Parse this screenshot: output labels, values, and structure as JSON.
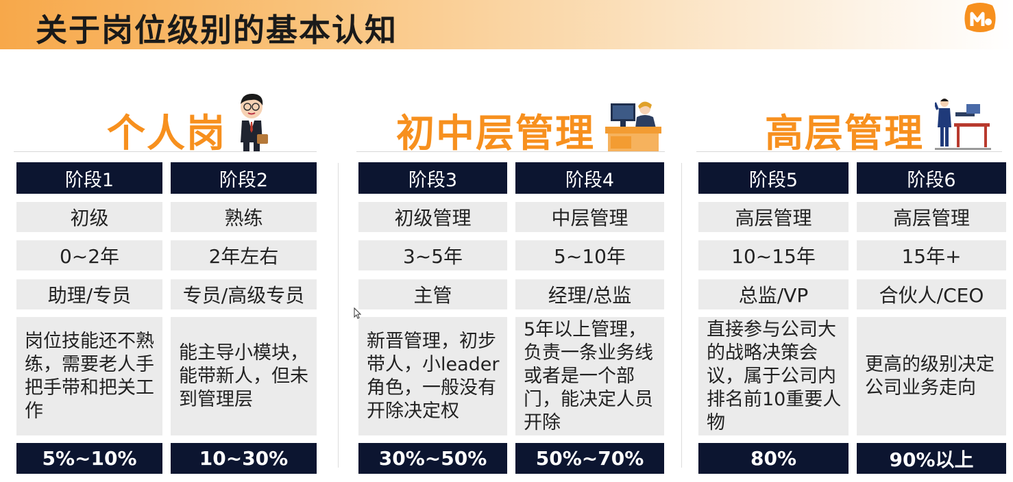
{
  "title": "关于岗位级别的基本认知",
  "groups": [
    {
      "title": "个人岗"
    },
    {
      "title": "初中层管理"
    },
    {
      "title": "高层管理"
    }
  ],
  "stages": [
    {
      "stage": "阶段1",
      "level": "初级",
      "years": "0~2年",
      "role": "助理/专员",
      "description": "岗位技能还不熟练，需要老人手把手带和把关工作",
      "percent": "5%~10%"
    },
    {
      "stage": "阶段2",
      "level": "熟练",
      "years": "2年左右",
      "role": "专员/高级专员",
      "description": "能主导小模块，能带新人，但未到管理层",
      "percent": "10~30%"
    },
    {
      "stage": "阶段3",
      "level": "初级管理",
      "years": "3~5年",
      "role": "主管",
      "description": "新晋管理，初步带人，小leader角色，一般没有开除决定权",
      "percent": "30%~50%"
    },
    {
      "stage": "阶段4",
      "level": "中层管理",
      "years": "5~10年",
      "role": "经理/总监",
      "description": "5年以上管理，负责一条业务线或者是一个部门，能决定人员开除",
      "percent": "50%~70%"
    },
    {
      "stage": "阶段5",
      "level": "高层管理",
      "years": "10~15年",
      "role": "总监/VP",
      "description": "直接参与公司大的战略决策会议，属于公司内排名前10重要人物",
      "percent": "80%"
    },
    {
      "stage": "阶段6",
      "level": "高层管理",
      "years": "15年+",
      "role": "合伙人/CEO",
      "description": "更高的级别决定公司业务走向",
      "percent": "90%以上"
    }
  ],
  "colors": {
    "accent": "#f7901e",
    "dark": "#0c1530",
    "cell": "#ebebeb"
  },
  "icons": [
    "logo-m-icon",
    "businessman-icon",
    "desk-worker-icon",
    "manager-presenting-icon",
    "cursor-icon"
  ]
}
